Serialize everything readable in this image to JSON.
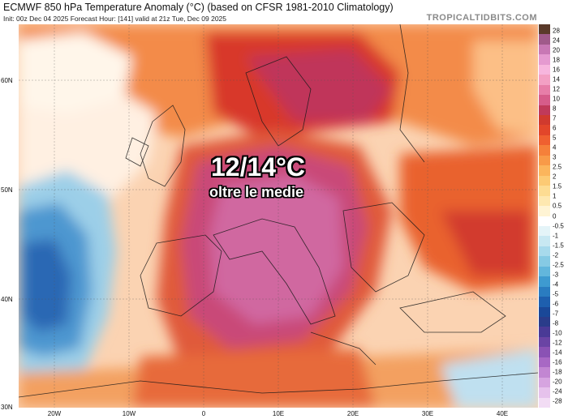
{
  "header": {
    "title": "ECMWF 850 hPa Temperature Anomaly (°C) (based on CFSR 1981-2010 Climatology)",
    "subtitle": "Init: 00z Dec 04 2025   Forecast Hour: [141]   valid at 21z Tue, Dec 09 2025",
    "brand": "TROPICALTIDBITS.COM"
  },
  "overlay": {
    "headline": "12/14°C",
    "subline": "oltre le medie"
  },
  "axes": {
    "lat_labels": [
      "60N",
      "50N",
      "40N",
      "30N"
    ],
    "lon_labels": [
      "20W",
      "10W",
      "0",
      "10E",
      "20E",
      "30E",
      "40E"
    ]
  },
  "colorbar": {
    "labels": [
      "28",
      "24",
      "20",
      "18",
      "16",
      "14",
      "12",
      "10",
      "8",
      "7",
      "6",
      "5",
      "4",
      "3",
      "2.5",
      "2",
      "1.5",
      "1",
      "0.5",
      "0",
      "-0.5",
      "-1",
      "-1.5",
      "-2",
      "-2.5",
      "-3",
      "-4",
      "-5",
      "-6",
      "-7",
      "-8",
      "-10",
      "-12",
      "-14",
      "-16",
      "-18",
      "-20",
      "-24",
      "-28"
    ],
    "colors": [
      "#5a3a2a",
      "#a05a8a",
      "#c878b4",
      "#e59ad0",
      "#f7b6de",
      "#f3a0c4",
      "#e77ea8",
      "#d65c8a",
      "#c03a5a",
      "#d03a2e",
      "#e2462a",
      "#ef6030",
      "#f5803a",
      "#f89a48",
      "#fbb55c",
      "#fcca74",
      "#fddc92",
      "#fee8b0",
      "#fff4d4",
      "#ffffff",
      "#e4f4f8",
      "#c8e8f2",
      "#a8daec",
      "#86cae4",
      "#62b6dc",
      "#3e9ad0",
      "#2a7cc0",
      "#1e5fae",
      "#1a4898",
      "#2a3c8a",
      "#4a3a96",
      "#6a44a4",
      "#8a52b4",
      "#a868c4",
      "#c286d2",
      "#d6a4e0",
      "#e6c2ec",
      "#f2dcf4"
    ]
  },
  "colors": {
    "cold_core": "#2a6fc0",
    "warm_core": "#b85a8a",
    "ocean_neutral": "#fde6d0"
  }
}
